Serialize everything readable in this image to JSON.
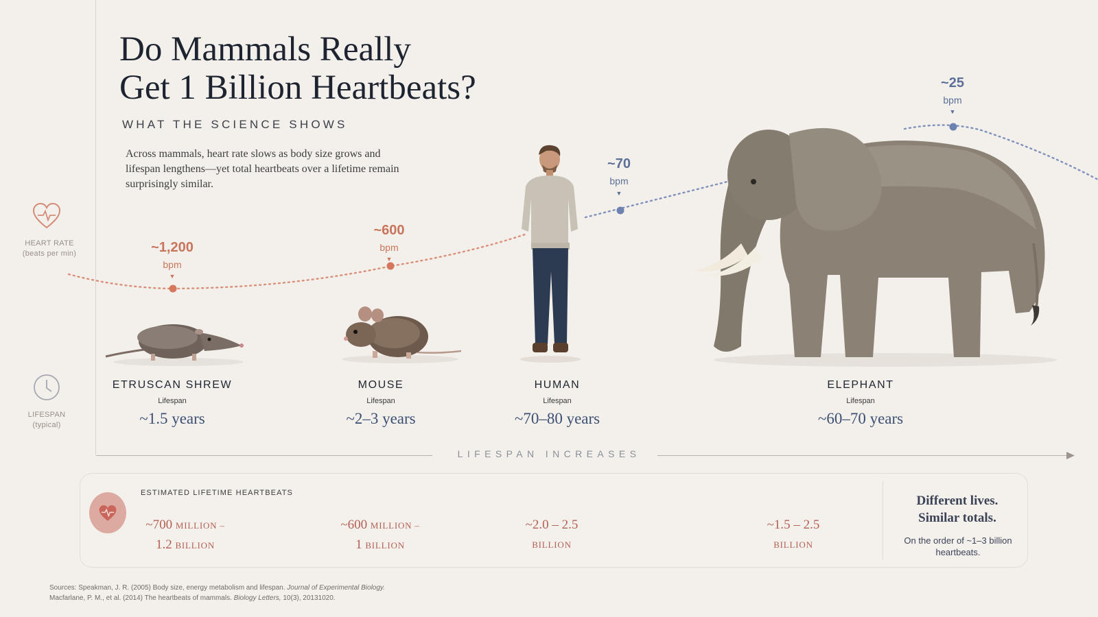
{
  "title": "Do Mammals Really Get 1 Billion Heartbeats?",
  "title_line1": "Do Mammals Really",
  "title_line2": "Get 1 Billion Heartbeats?",
  "subtitle": "WHAT THE SCIENCE SHOWS",
  "intro": "Across mammals, heart rate slows as body size grows and lifespan lengthens—yet total heartbeats over a lifetime remain surprisingly similar.",
  "rail": {
    "heart_label": "HEART RATE",
    "heart_sub": "(beats per min)",
    "life_label": "LIFESPAN",
    "life_sub": "(typical)"
  },
  "animals": [
    {
      "name": "ETRUSCAN SHREW",
      "bpm": "~1,200",
      "bpm_unit": "bpm",
      "lifespan_label": "Lifespan",
      "lifespan": "~1.5 years"
    },
    {
      "name": "MOUSE",
      "bpm": "~600",
      "bpm_unit": "bpm",
      "lifespan_label": "Lifespan",
      "lifespan": "~2–3 years"
    },
    {
      "name": "HUMAN",
      "bpm": "~70",
      "bpm_unit": "bpm",
      "lifespan_label": "Lifespan",
      "lifespan": "~70–80 years"
    },
    {
      "name": "ELEPHANT",
      "bpm": "~25",
      "bpm_unit": "bpm",
      "lifespan_label": "Lifespan",
      "lifespan": "~60–70 years"
    }
  ],
  "axis_label": "LIFESPAN INCREASES",
  "panel": {
    "heading": "ESTIMATED LIFETIME HEARTBEATS",
    "beats": [
      {
        "line1": "~700",
        "line1_unit": "MILLION –",
        "line2": "1.2",
        "line2_unit": "BILLION"
      },
      {
        "line1": "~600",
        "line1_unit": "MILLION –",
        "line2": "1",
        "line2_unit": "BILLION"
      },
      {
        "line1": "~2.0 – 2.5",
        "line1_unit": "",
        "line2": "",
        "line2_unit": "BILLION"
      },
      {
        "line1": "~1.5 – 2.5",
        "line1_unit": "",
        "line2": "",
        "line2_unit": "BILLION"
      }
    ],
    "tagline1": "Different lives.",
    "tagline2": "Similar totals.",
    "tagline_note": "On the order of ~1–3 billion heartbeats."
  },
  "sources": {
    "s1_pre": "Sources: Speakman, J. R. (2005) Body size, energy metabolism and lifespan.",
    "s1_journal": "Journal of Experimental Biology.",
    "s2_pre": "Macfarlane, P. M., et al. (2014) The heartbeats of mammals.",
    "s2_journal": "Biology Letters,",
    "s2_post": "10(3), 20131020."
  },
  "colors": {
    "warm_accent": "#c9755c",
    "cool_accent": "#5b6f97",
    "title": "#1d2430",
    "background": "#f3f0ec"
  },
  "icons": {
    "heart_rate": "heart-pulse-icon",
    "lifespan": "clock-icon",
    "panel_badge": "heart-pulse-icon"
  }
}
